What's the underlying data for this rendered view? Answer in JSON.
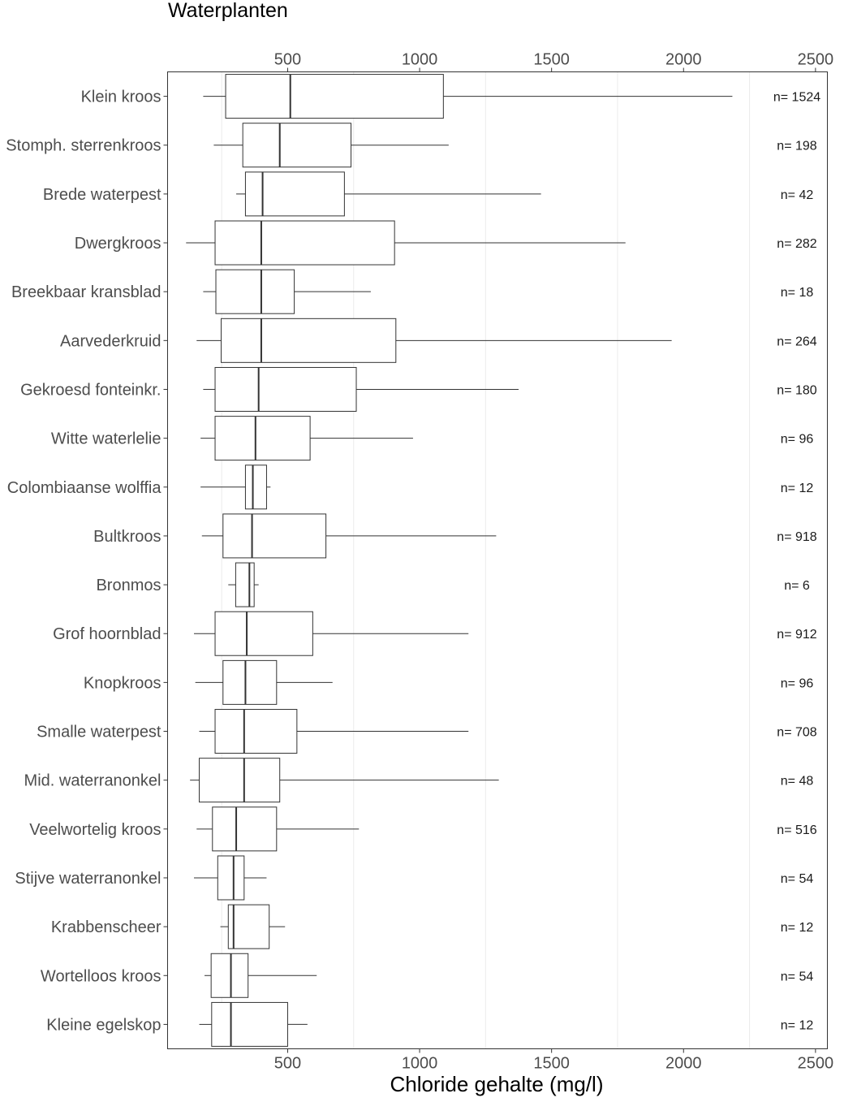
{
  "chart_data": {
    "type": "boxplot",
    "orientation": "horizontal",
    "title": "Waterplanten",
    "xlabel": "Chloride gehalte (mg/l)",
    "ylabel": "",
    "xlim": [
      0,
      2500
    ],
    "x_ticks": [
      500,
      1000,
      1500,
      2000,
      2500
    ],
    "x_tick_labels": [
      "500",
      "1000",
      "1500",
      "2000",
      "2500"
    ],
    "x_axis_top_and_bottom": true,
    "grid": "vertical minor lines only",
    "n_prefix": "n= ",
    "categories": [
      {
        "label": "Klein kroos",
        "whisker_low": 180,
        "q1": 265,
        "median": 510,
        "q3": 1090,
        "whisker_high": 2185,
        "n": 1524
      },
      {
        "label": "Stomph. sterrenkroos",
        "whisker_low": 220,
        "q1": 330,
        "median": 470,
        "q3": 740,
        "whisker_high": 1110,
        "n": 198
      },
      {
        "label": "Brede waterpest",
        "whisker_low": 305,
        "q1": 340,
        "median": 405,
        "q3": 715,
        "whisker_high": 1460,
        "n": 42
      },
      {
        "label": "Dwergkroos",
        "whisker_low": 115,
        "q1": 225,
        "median": 400,
        "q3": 905,
        "whisker_high": 1780,
        "n": 282
      },
      {
        "label": "Breekbaar kransblad",
        "whisker_low": 180,
        "q1": 228,
        "median": 400,
        "q3": 525,
        "whisker_high": 815,
        "n": 18
      },
      {
        "label": "Aarvederkruid",
        "whisker_low": 155,
        "q1": 248,
        "median": 400,
        "q3": 910,
        "whisker_high": 1955,
        "n": 264
      },
      {
        "label": "Gekroesd fonteinkr.",
        "whisker_low": 180,
        "q1": 225,
        "median": 390,
        "q3": 760,
        "whisker_high": 1375,
        "n": 180
      },
      {
        "label": "Witte waterlelie",
        "whisker_low": 170,
        "q1": 225,
        "median": 378,
        "q3": 585,
        "whisker_high": 975,
        "n": 96
      },
      {
        "label": "Colombiaanse wolffia",
        "whisker_low": 170,
        "q1": 340,
        "median": 368,
        "q3": 420,
        "whisker_high": 435,
        "n": 12
      },
      {
        "label": "Bultkroos",
        "whisker_low": 175,
        "q1": 255,
        "median": 365,
        "q3": 645,
        "whisker_high": 1290,
        "n": 918
      },
      {
        "label": "Bronmos",
        "whisker_low": 275,
        "q1": 303,
        "median": 355,
        "q3": 373,
        "whisker_high": 390,
        "n": 6
      },
      {
        "label": "Grof hoornblad",
        "whisker_low": 145,
        "q1": 225,
        "median": 345,
        "q3": 595,
        "whisker_high": 1185,
        "n": 912
      },
      {
        "label": "Knopkroos",
        "whisker_low": 150,
        "q1": 255,
        "median": 340,
        "q3": 458,
        "whisker_high": 670,
        "n": 96
      },
      {
        "label": "Smalle waterpest",
        "whisker_low": 165,
        "q1": 225,
        "median": 335,
        "q3": 535,
        "whisker_high": 1185,
        "n": 708
      },
      {
        "label": "Mid. waterranonkel",
        "whisker_low": 130,
        "q1": 165,
        "median": 335,
        "q3": 470,
        "whisker_high": 1300,
        "n": 48
      },
      {
        "label": "Veelwortelig kroos",
        "whisker_low": 155,
        "q1": 215,
        "median": 305,
        "q3": 458,
        "whisker_high": 770,
        "n": 516
      },
      {
        "label": "Stijve waterranonkel",
        "whisker_low": 145,
        "q1": 235,
        "median": 295,
        "q3": 335,
        "whisker_high": 420,
        "n": 54
      },
      {
        "label": "Krabbenscheer",
        "whisker_low": 245,
        "q1": 275,
        "median": 295,
        "q3": 430,
        "whisker_high": 490,
        "n": 12
      },
      {
        "label": "Wortelloos kroos",
        "whisker_low": 185,
        "q1": 210,
        "median": 285,
        "q3": 350,
        "whisker_high": 610,
        "n": 54
      },
      {
        "label": "Kleine egelskop",
        "whisker_low": 165,
        "q1": 212,
        "median": 285,
        "q3": 500,
        "whisker_high": 575,
        "n": 12
      }
    ]
  }
}
